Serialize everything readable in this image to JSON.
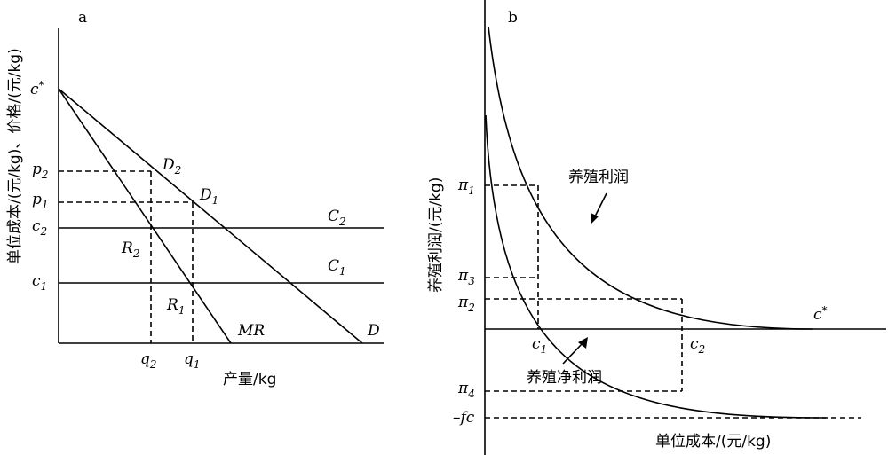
{
  "panel_a": {
    "panel_label": "a",
    "y_axis_title": "单位成本/(元/kg)、价格/(元/kg)",
    "x_axis_title": "产量/kg",
    "y_labels": [
      {
        "base": "c",
        "sup": "*"
      },
      {
        "base": "p",
        "sub": "2"
      },
      {
        "base": "p",
        "sub": "1"
      },
      {
        "base": "c",
        "sub": "2"
      },
      {
        "base": "c",
        "sub": "1"
      }
    ],
    "x_labels": [
      {
        "base": "q",
        "sub": "2"
      },
      {
        "base": "q",
        "sub": "1"
      }
    ],
    "curve_labels": {
      "D2": {
        "base": "D",
        "sub": "2"
      },
      "D1": {
        "base": "D",
        "sub": "1"
      },
      "C2": {
        "base": "C",
        "sub": "2"
      },
      "C1": {
        "base": "C",
        "sub": "1"
      },
      "R2": {
        "base": "R",
        "sub": "2"
      },
      "R1": {
        "base": "R",
        "sub": "1"
      },
      "MR": "MR",
      "D": "D"
    }
  },
  "panel_b": {
    "panel_label": "b",
    "y_axis_title": "养殖利润/(元/kg)",
    "x_axis_title": "单位成本/(元/kg)",
    "y_labels": [
      {
        "base": "π",
        "sub": "1"
      },
      {
        "base": "π",
        "sub": "3"
      },
      {
        "base": "π",
        "sub": "2"
      },
      {
        "base": "π",
        "sub": "4"
      },
      {
        "base": "–fc"
      }
    ],
    "x_labels": [
      {
        "base": "c",
        "sub": "1"
      },
      {
        "base": "c",
        "sub": "2"
      }
    ],
    "cstar": {
      "base": "c",
      "sup": "*"
    },
    "curve_annotations": {
      "gross_profit": "养殖利润",
      "net_profit": "养殖净利润"
    }
  }
}
